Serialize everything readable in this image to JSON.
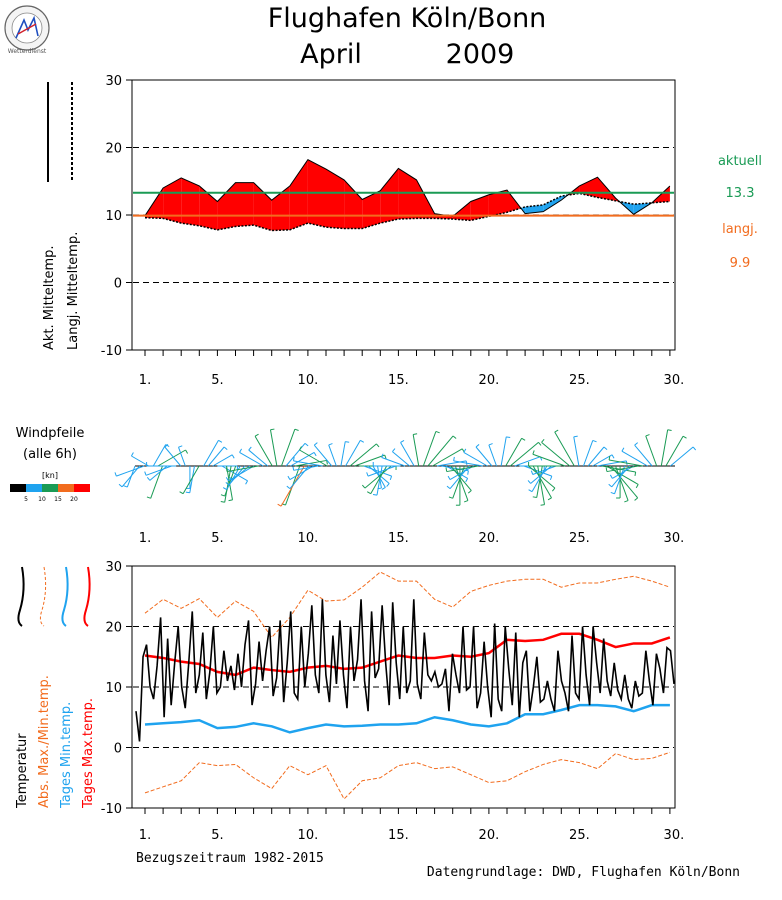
{
  "header": {
    "title_line1": "Flughafen Köln/Bonn",
    "month": "April",
    "year": "2009",
    "logo_text": "Wetterdienst"
  },
  "colors": {
    "red": "#ff0000",
    "blue": "#1fa3ef",
    "green": "#1a9b55",
    "orange": "#f26c1e",
    "black": "#000000"
  },
  "chart_data": [
    {
      "type": "area",
      "id": "mean-temp",
      "legend": [
        "Akt. Mitteltemp.",
        "Langj. Mitteltemp."
      ],
      "side_labels": {
        "current_label": "aktuell",
        "current_value": "13.3",
        "longterm_label": "langj.",
        "longterm_value": "9.9"
      },
      "ylim": [
        -10,
        30
      ],
      "yticks": [
        "-10",
        "0",
        "10",
        "20",
        "30"
      ],
      "xticks": [
        "1.",
        "5.",
        "10.",
        "15.",
        "20.",
        "25.",
        "30."
      ],
      "current_mean": 13.3,
      "longterm_mean": 9.9,
      "actual": [
        9.9,
        14.0,
        15.5,
        14.3,
        12.0,
        14.8,
        14.8,
        12.2,
        14.3,
        18.2,
        16.8,
        15.2,
        12.3,
        13.6,
        16.9,
        15.2,
        10.2,
        9.8,
        12.0,
        13.0,
        13.7,
        10.2,
        10.5,
        12.2,
        14.3,
        15.6,
        12.5,
        10.1,
        11.8,
        14.3
      ],
      "longterm": [
        9.6,
        9.5,
        8.8,
        8.4,
        7.8,
        8.3,
        8.5,
        7.7,
        7.8,
        8.8,
        8.2,
        8.0,
        8.0,
        8.8,
        9.4,
        9.5,
        9.5,
        9.4,
        9.2,
        9.8,
        10.4,
        11.2,
        11.5,
        12.8,
        13.2,
        12.6,
        12.1,
        11.6,
        11.8,
        12.0
      ]
    },
    {
      "type": "scatter",
      "id": "wind-arrows",
      "title_line1": "Windpfeile",
      "title_line2": "(alle 6h)",
      "unit": "[kn]",
      "scale_ticks": [
        "5",
        "10",
        "15",
        "20"
      ],
      "scale_colors": [
        "#000000",
        "#1fa3ef",
        "#1a9b55",
        "#f26c1e",
        "#ff0000"
      ],
      "xticks": [
        "1.",
        "5.",
        "10.",
        "15.",
        "20.",
        "25.",
        "30."
      ],
      "wind_speed_kn": [
        6,
        8,
        9,
        5,
        7,
        10,
        11,
        6,
        8,
        9,
        7,
        5,
        6,
        8,
        10,
        9,
        7,
        6,
        5,
        9,
        11,
        12,
        10,
        8,
        7,
        6,
        9,
        10,
        8,
        7,
        11,
        12,
        13,
        9,
        8,
        10,
        14,
        16,
        9,
        8,
        7,
        9,
        10,
        8,
        6,
        7,
        9,
        11,
        10,
        12,
        9,
        8,
        7,
        6,
        9,
        10,
        11,
        9,
        8,
        7,
        6,
        8,
        10,
        12,
        13,
        11,
        9,
        8,
        7,
        10,
        12,
        13,
        11,
        9,
        8,
        10,
        9,
        8,
        7,
        6,
        9,
        10,
        12,
        8,
        7,
        9,
        11,
        12,
        13,
        10,
        9,
        8,
        7,
        10,
        11,
        12,
        13,
        9,
        8,
        7,
        6,
        9,
        11,
        12,
        14,
        12,
        10,
        9,
        8,
        7,
        10,
        11,
        9,
        8,
        10,
        12,
        11,
        9
      ],
      "wind_dir_deg": [
        200,
        220,
        250,
        300,
        30,
        60,
        200,
        230,
        250,
        270,
        320,
        340,
        180,
        190,
        210,
        30,
        40,
        60,
        90,
        120,
        170,
        190,
        200,
        210,
        220,
        230,
        240,
        260,
        300,
        310,
        330,
        350,
        20,
        40,
        60,
        80,
        200,
        210,
        220,
        240,
        260,
        280,
        300,
        320,
        340,
        10,
        30,
        50,
        70,
        90,
        110,
        130,
        150,
        170,
        190,
        210,
        230,
        250,
        270,
        290,
        310,
        330,
        350,
        20,
        40,
        60,
        80,
        100,
        120,
        140,
        160,
        180,
        200,
        220,
        240,
        260,
        280,
        300,
        320,
        340,
        10,
        30,
        50,
        70,
        90,
        110,
        130,
        150,
        170,
        190,
        210,
        230,
        250,
        270,
        290,
        310,
        330,
        350,
        20,
        40,
        60,
        80,
        100,
        120,
        140,
        160,
        180,
        200,
        220,
        240,
        260,
        280,
        300,
        320,
        340,
        10,
        30,
        50
      ]
    },
    {
      "type": "line",
      "id": "temperature",
      "legend": [
        "Temperatur",
        "Abs. Max./Min.temp.",
        "Tages Min.temp.",
        "Tages Max.temp."
      ],
      "ylim": [
        -10,
        30
      ],
      "yticks": [
        "-10",
        "0",
        "10",
        "20",
        "30"
      ],
      "xticks": [
        "1.",
        "5.",
        "10.",
        "15.",
        "20.",
        "25.",
        "30."
      ],
      "footer_left": "Bezugszeitraum 1982-2015",
      "footer_right": "Datengrundlage: DWD, Flughafen Köln/Bonn",
      "series": [
        {
          "name": "Abs. Max./Min.temp.",
          "values": [
            22.2,
            24.5,
            23.0,
            24.6,
            21.5,
            24.2,
            22.5,
            18.2,
            21.5,
            26.0,
            24.2,
            24.4,
            26.5,
            29.0,
            27.5,
            27.5,
            24.5,
            23.2,
            25.8,
            26.8,
            27.5,
            27.8,
            27.8,
            26.5,
            27.2,
            27.2,
            27.8,
            28.3,
            27.5,
            26.5
          ]
        },
        {
          "name": "Abs. Max./Min.temp. (min)",
          "values": [
            -7.5,
            -6.5,
            -5.5,
            -2.5,
            -3.0,
            -2.8,
            -5.0,
            -6.8,
            -3.0,
            -4.5,
            -3.0,
            -8.5,
            -5.5,
            -5.0,
            -3.0,
            -2.5,
            -3.5,
            -3.2,
            -4.5,
            -5.8,
            -5.5,
            -4.0,
            -2.8,
            -2.0,
            -2.5,
            -3.5,
            -1.0,
            -2.0,
            -1.8,
            -0.8
          ]
        },
        {
          "name": "Tages Min.temp.",
          "values": [
            3.8,
            4.0,
            4.2,
            4.5,
            3.2,
            3.4,
            4.0,
            3.5,
            2.5,
            3.2,
            3.8,
            3.5,
            3.6,
            3.8,
            3.8,
            4.0,
            5.0,
            4.5,
            3.8,
            3.5,
            4.0,
            5.5,
            5.5,
            6.2,
            7.0,
            7.0,
            6.8,
            6.0,
            7.0,
            7.0
          ]
        },
        {
          "name": "Tages Max.temp.",
          "values": [
            15.2,
            14.8,
            14.2,
            13.8,
            12.5,
            12.0,
            13.2,
            12.8,
            12.5,
            13.2,
            13.5,
            13.0,
            13.2,
            14.2,
            15.2,
            14.8,
            14.8,
            15.2,
            15.0,
            15.6,
            17.8,
            17.6,
            17.8,
            18.8,
            18.8,
            17.8,
            16.6,
            17.2,
            17.2,
            18.2
          ]
        },
        {
          "name": "Temperatur",
          "values": [
            6.0,
            1.0,
            15.0,
            17.0,
            10.0,
            8.0,
            13.5,
            21.5,
            5.0,
            18.0,
            7.0,
            14.0,
            20.0,
            10.0,
            6.5,
            14.0,
            22.5,
            9.0,
            12.0,
            19.0,
            8.0,
            12.5,
            20.0,
            9.0,
            10.0,
            16.0,
            11.0,
            13.5,
            9.5,
            15.5,
            10.0,
            17.0,
            21.0,
            7.0,
            10.5,
            17.5,
            11.0,
            16.0,
            20.0,
            8.5,
            11.5,
            21.0,
            7.5,
            14.0,
            22.5,
            9.0,
            8.0,
            20.0,
            10.0,
            15.5,
            23.5,
            12.0,
            9.0,
            24.5,
            12.0,
            7.5,
            18.5,
            10.5,
            21.0,
            12.0,
            6.5,
            20.0,
            11.0,
            14.5,
            24.5,
            11.0,
            6.0,
            22.5,
            11.5,
            13.0,
            23.5,
            14.0,
            7.0,
            24.0,
            14.0,
            8.0,
            20.0,
            9.0,
            11.0,
            24.5,
            10.5,
            8.0,
            19.0,
            12.0,
            11.0,
            12.5,
            10.0,
            10.5,
            13.0,
            6.0,
            15.5,
            12.0,
            9.0,
            20.0,
            9.5,
            10.0,
            20.0,
            6.5,
            9.0,
            17.5,
            10.0,
            5.0,
            20.5,
            8.0,
            6.0,
            20.0,
            13.0,
            7.0,
            19.0,
            5.0,
            14.0,
            16.0,
            6.0,
            10.0,
            15.0,
            7.5,
            8.0,
            11.0,
            8.0,
            6.0,
            16.0,
            11.0,
            9.0,
            6.0,
            18.5,
            9.0,
            8.0,
            20.0,
            12.0,
            7.0,
            20.0,
            14.0,
            9.0,
            18.0,
            11.0,
            8.5,
            14.0,
            9.5,
            8.0,
            12.0,
            8.0,
            6.5,
            11.0,
            8.5,
            9.0,
            16.0,
            11.0,
            7.0,
            15.5,
            13.0,
            9.0,
            16.5,
            16.0,
            10.5
          ]
        }
      ]
    }
  ]
}
